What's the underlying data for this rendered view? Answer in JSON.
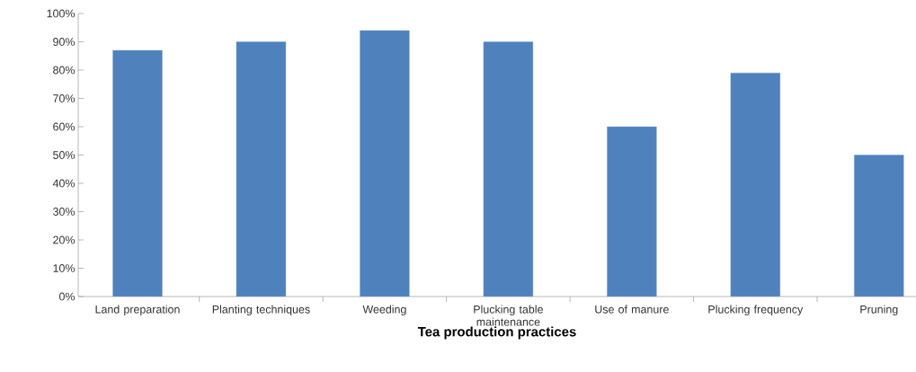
{
  "chart_data": {
    "type": "bar",
    "xlabel": "Tea production practices",
    "categories": [
      "Land preparation",
      "Planting techniques",
      "Weeding",
      "Plucking table maintenance",
      "Use of manure",
      "Plucking frequency",
      "Pruning"
    ],
    "values": [
      87,
      90,
      94,
      90,
      60,
      79,
      50
    ],
    "color": "#4f81bd",
    "ylim": [
      0,
      100
    ],
    "yticks": [
      {
        "value": 0,
        "label": "0%"
      },
      {
        "value": 10,
        "label": "10%"
      },
      {
        "value": 20,
        "label": "20%"
      },
      {
        "value": 30,
        "label": "30%"
      },
      {
        "value": 40,
        "label": "40%"
      },
      {
        "value": 50,
        "label": "50%"
      },
      {
        "value": 60,
        "label": "60%"
      },
      {
        "value": 70,
        "label": "70%"
      },
      {
        "value": 80,
        "label": "80%"
      },
      {
        "value": 90,
        "label": "90%"
      },
      {
        "value": 100,
        "label": "100%"
      }
    ],
    "grid": false
  }
}
